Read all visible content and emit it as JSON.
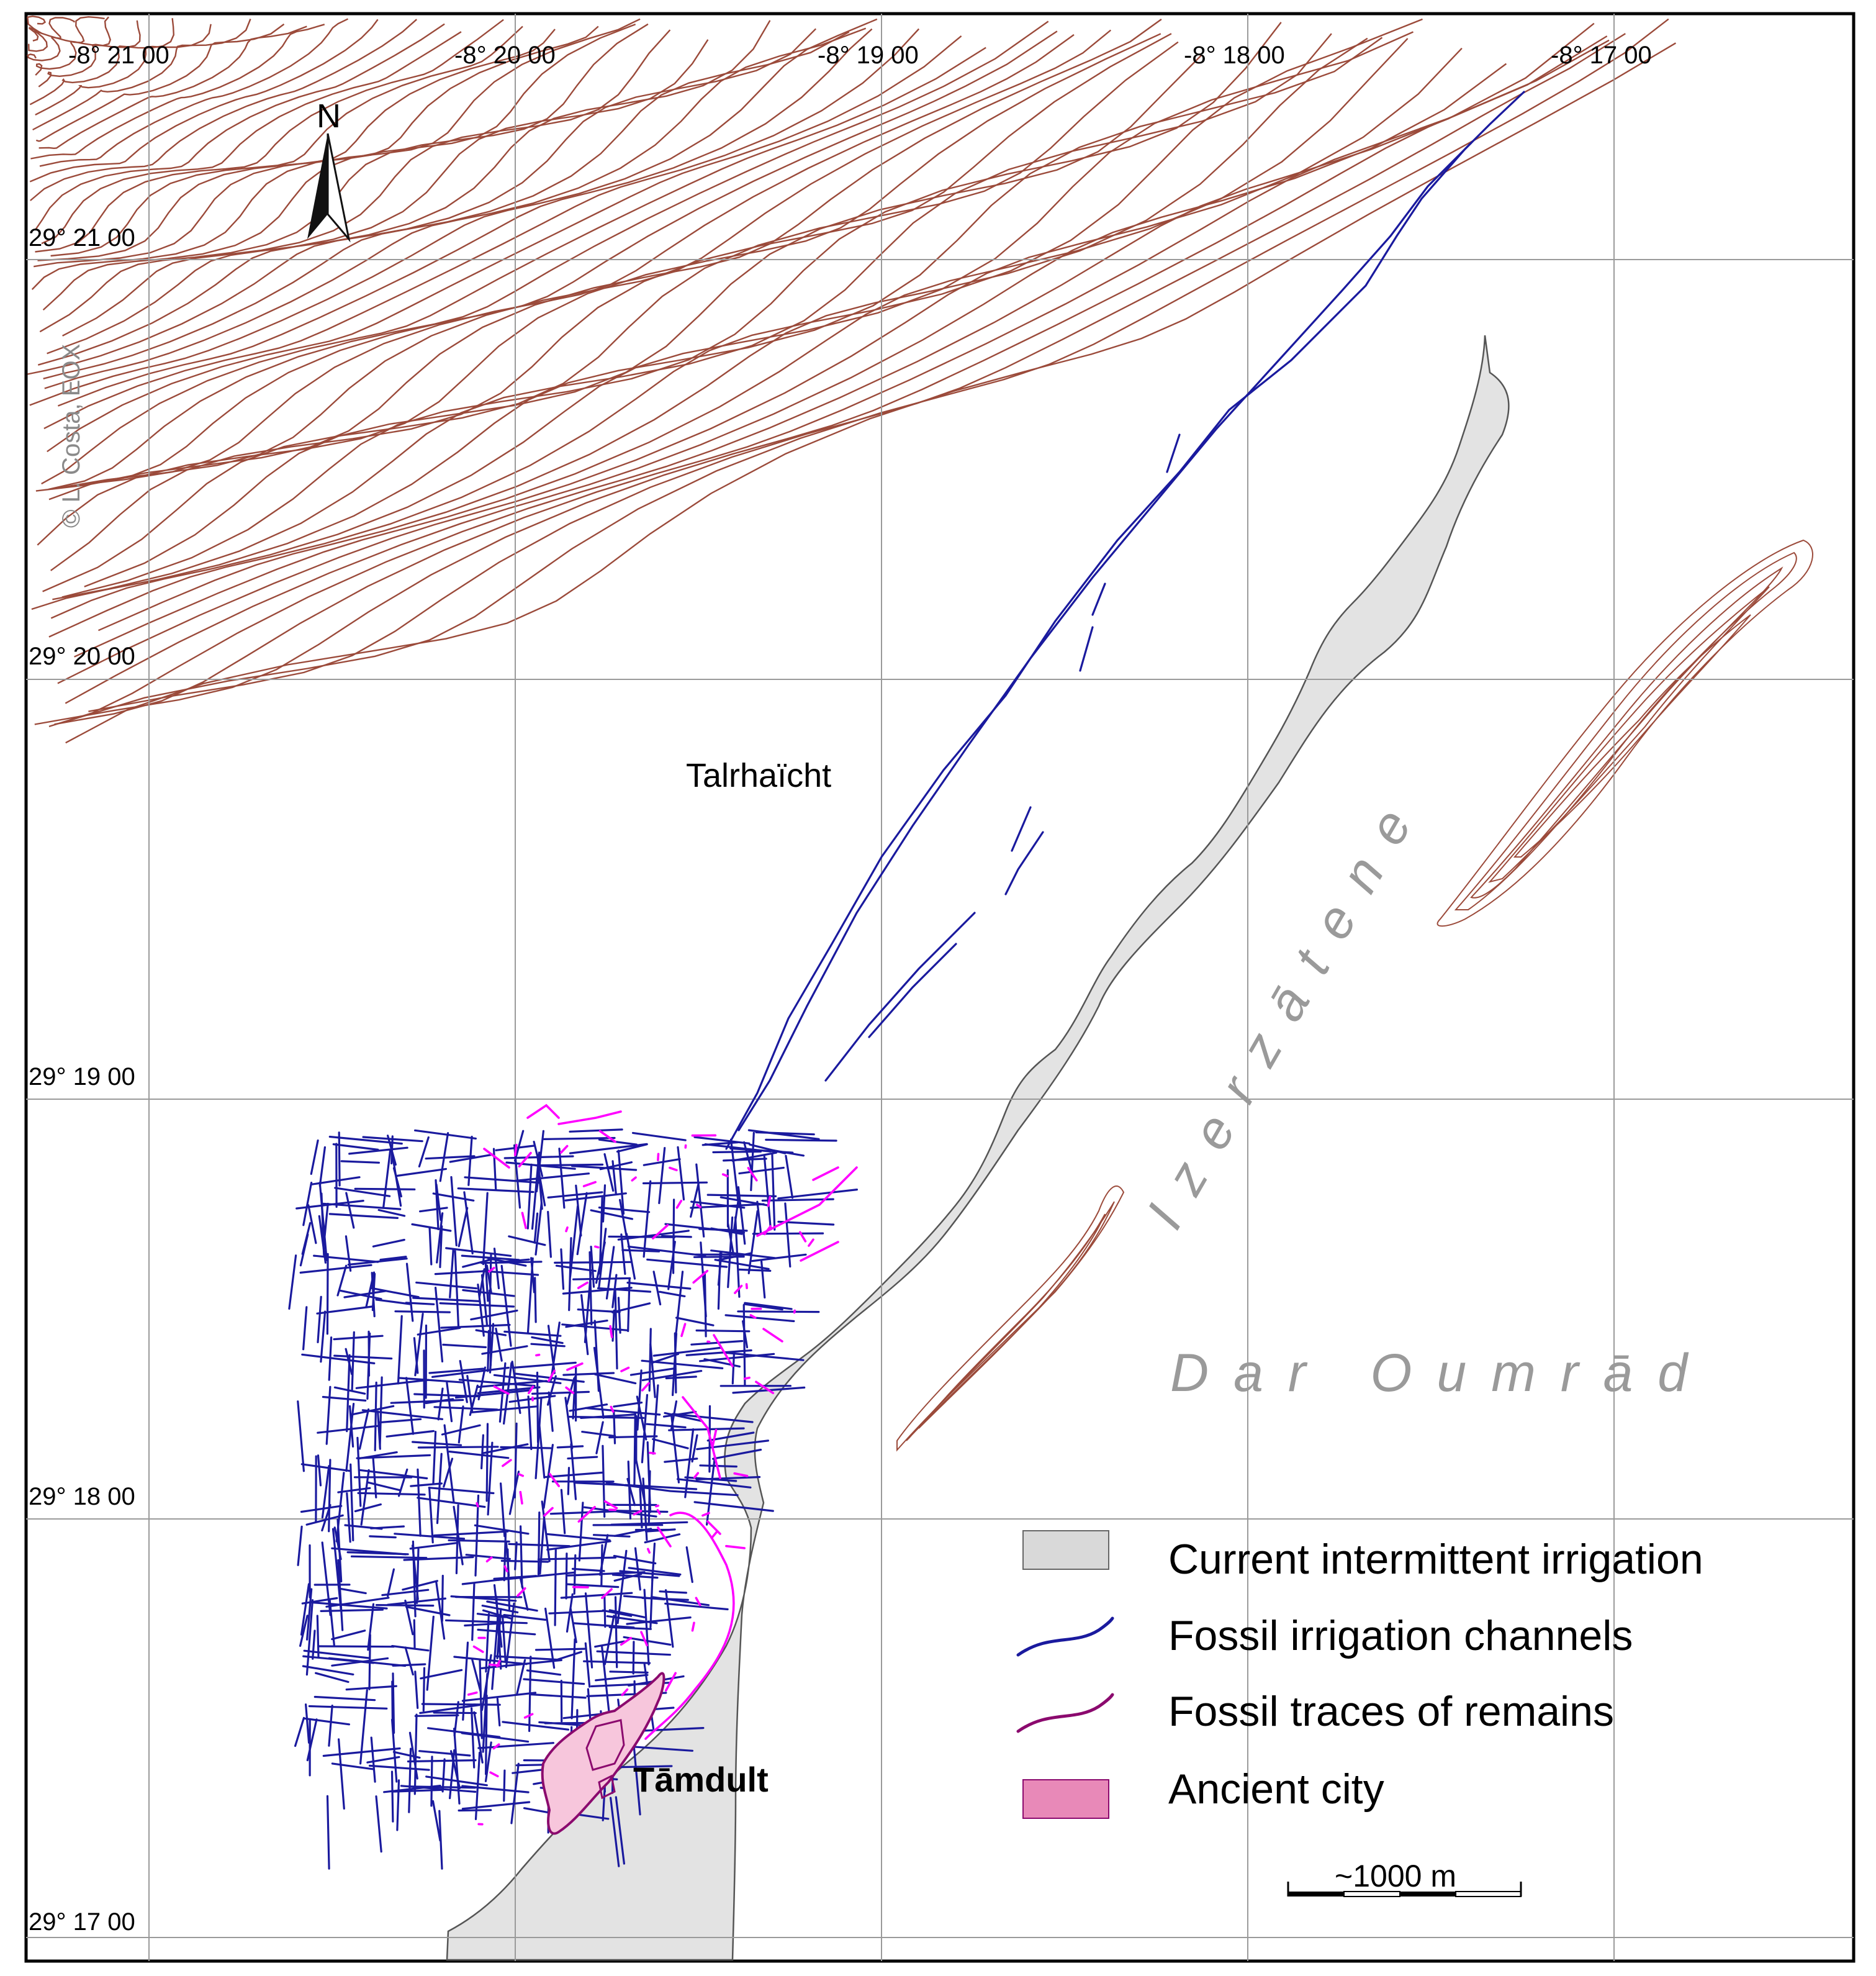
{
  "map": {
    "credit": "© L. Costa, EOX",
    "north_label": "N",
    "longitude_labels": [
      "-8° 21 00",
      "-8° 20 00",
      "-8° 19 00",
      "-8° 18 00",
      "-8° 17 00"
    ],
    "latitude_labels": [
      "29° 21 00",
      "29° 20 00",
      "29° 19 00",
      "29° 18 00",
      "29° 17 00"
    ],
    "places": {
      "talrhaicht": "Talrhaïcht",
      "tamdult": "Tāmdult",
      "izerzatene": "Izerzātene",
      "dar_oumrad": "Dar Oumrād"
    },
    "legend": [
      {
        "label": "Current intermittent irrigation",
        "symbol": "box",
        "color": "#d9d9d9"
      },
      {
        "label": "Fossil irrigation channels",
        "symbol": "line",
        "color": "#1a1a9e"
      },
      {
        "label": "Fossil traces of remains",
        "symbol": "line",
        "color": "#8b0a6e"
      },
      {
        "label": "Ancient city",
        "symbol": "box",
        "color": "#e889b8"
      }
    ],
    "scale_bar": "~1000 m",
    "colors": {
      "contour": "#9b4a3a",
      "channels": "#1a1a9e",
      "remains": "#ff00ff",
      "irrigation_fill": "#e3e3e3",
      "city_fill": "#f7c6dc",
      "grid": "#9a9a9a"
    }
  }
}
